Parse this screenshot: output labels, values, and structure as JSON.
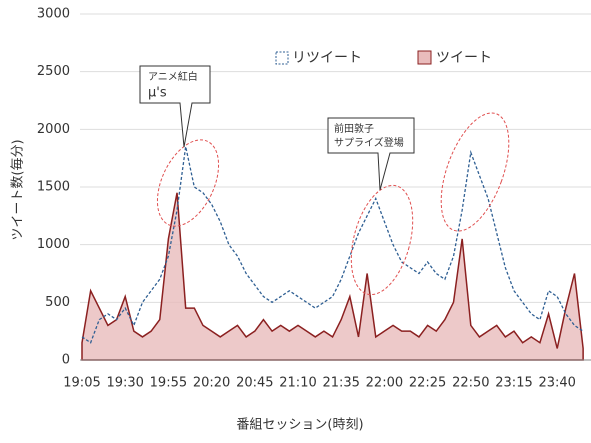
{
  "chart_data": {
    "type": "line_area",
    "x_label": "番組セッション(時刻)",
    "y_label": "ツイート数(毎分)",
    "categories": [
      "19:05",
      null,
      null,
      null,
      null,
      "19:30",
      null,
      null,
      null,
      null,
      "19:55",
      null,
      null,
      null,
      null,
      "20:20",
      null,
      null,
      null,
      null,
      "20:45",
      null,
      null,
      null,
      null,
      "21:10",
      null,
      null,
      null,
      null,
      "21:35",
      null,
      null,
      null,
      null,
      "22:00",
      null,
      null,
      null,
      null,
      "22:25",
      null,
      null,
      null,
      null,
      "22:50",
      null,
      null,
      null,
      null,
      "23:15",
      null,
      null,
      null,
      null,
      "23:40",
      null,
      null,
      null
    ],
    "series": [
      {
        "name": "リツイート",
        "color": "#2f5f93",
        "style": "dashed",
        "values": [
          200,
          150,
          350,
          400,
          350,
          450,
          300,
          500,
          600,
          700,
          900,
          1300,
          1850,
          1500,
          1450,
          1350,
          1200,
          1000,
          900,
          750,
          650,
          550,
          500,
          550,
          600,
          550,
          500,
          450,
          500,
          550,
          700,
          900,
          1100,
          1250,
          1400,
          1200,
          1000,
          850,
          800,
          750,
          850,
          750,
          700,
          900,
          1300,
          1800,
          1600,
          1400,
          1100,
          800,
          600,
          500,
          400,
          350,
          600,
          550,
          400,
          300,
          250
        ]
      },
      {
        "name": "ツイート",
        "color": "#8b2020",
        "fill": "#e9bcbc",
        "style": "area",
        "values": [
          150,
          600,
          450,
          300,
          350,
          550,
          250,
          200,
          250,
          350,
          1050,
          1450,
          450,
          450,
          300,
          250,
          200,
          250,
          300,
          200,
          250,
          350,
          250,
          300,
          250,
          300,
          250,
          200,
          250,
          200,
          350,
          550,
          200,
          750,
          200,
          250,
          300,
          250,
          250,
          200,
          300,
          250,
          350,
          500,
          1050,
          300,
          200,
          250,
          300,
          200,
          250,
          150,
          200,
          150,
          400,
          100,
          450,
          750,
          100
        ]
      }
    ],
    "ylim": [
      0,
      3000
    ],
    "yticks": [
      0,
      500,
      1000,
      1500,
      2000,
      2500,
      3000
    ],
    "grid": true,
    "annotations": [
      {
        "lines": [
          "アニメ紅白",
          "μ's"
        ]
      },
      {
        "lines": [
          "前田敦子",
          "サプライズ登場"
        ]
      }
    ]
  }
}
